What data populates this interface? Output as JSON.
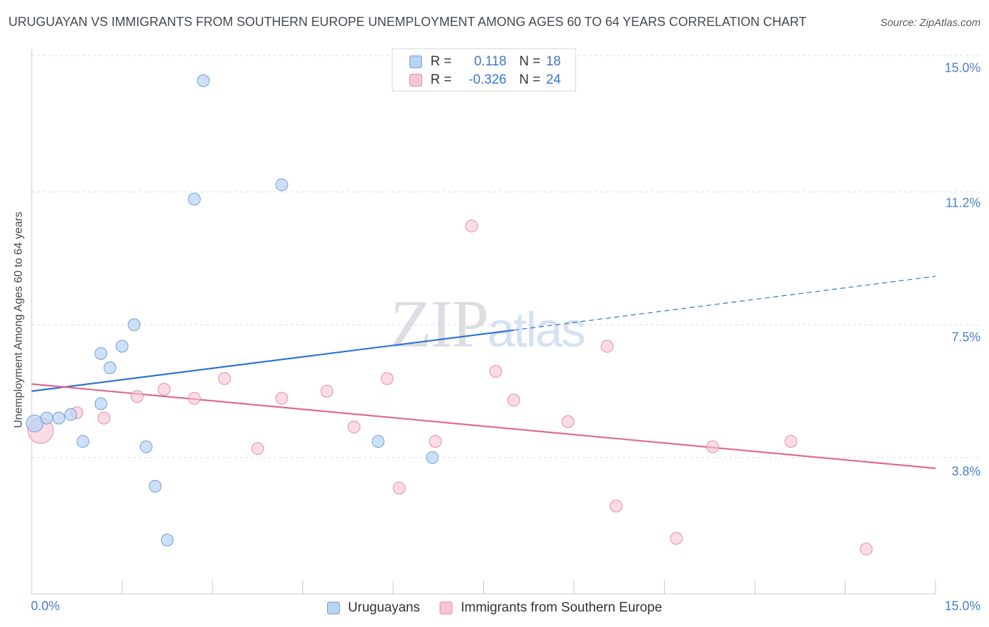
{
  "header": {
    "title": "URUGUAYAN VS IMMIGRANTS FROM SOUTHERN EUROPE UNEMPLOYMENT AMONG AGES 60 TO 64 YEARS CORRELATION CHART",
    "source": "Source: ZipAtlas.com"
  },
  "watermark": {
    "zip": "ZIP",
    "atlas": "atlas"
  },
  "legend_top": {
    "series1": {
      "r_label": "R =",
      "r_value": "0.118",
      "n_label": "N =",
      "n_value": "18"
    },
    "series2": {
      "r_label": "R =",
      "r_value": "-0.326",
      "n_label": "N =",
      "n_value": "24"
    }
  },
  "legend_bottom": {
    "series1": "Uruguayans",
    "series2": "Immigrants from Southern Europe"
  },
  "colors": {
    "blue_fill": "#b8d3f3",
    "blue_stroke": "#6f9fd8",
    "blue_line": "#2f74cf",
    "pink_fill": "#f8c5d5",
    "pink_stroke": "#e68aa9",
    "pink_line": "#e06893"
  },
  "chart_data": {
    "type": "scatter",
    "title": "URUGUAYAN VS IMMIGRANTS FROM SOUTHERN EUROPE UNEMPLOYMENT AMONG AGES 60 TO 64 YEARS CORRELATION CHART",
    "xlabel": "",
    "ylabel": "Unemployment Among Ages 60 to 64 years",
    "xlim": [
      0,
      15
    ],
    "ylim": [
      0,
      15
    ],
    "x_tick_labels": [
      "0.0%",
      "15.0%"
    ],
    "y_ticks": [
      {
        "value": 15.0,
        "label": "15.0%"
      },
      {
        "value": 11.2,
        "label": "11.2%"
      },
      {
        "value": 7.5,
        "label": "7.5%"
      },
      {
        "value": 3.8,
        "label": "3.8%"
      }
    ],
    "grid": true,
    "series": [
      {
        "name": "Uruguayans",
        "r": 0.118,
        "n": 18,
        "points": [
          {
            "x": 0.05,
            "y": 4.75,
            "size": "large"
          },
          {
            "x": 0.25,
            "y": 4.9
          },
          {
            "x": 0.45,
            "y": 4.9
          },
          {
            "x": 0.65,
            "y": 5.0
          },
          {
            "x": 0.85,
            "y": 4.25
          },
          {
            "x": 1.15,
            "y": 6.7
          },
          {
            "x": 1.15,
            "y": 5.3
          },
          {
            "x": 1.3,
            "y": 6.3
          },
          {
            "x": 1.5,
            "y": 6.9
          },
          {
            "x": 1.7,
            "y": 7.5
          },
          {
            "x": 1.9,
            "y": 4.1
          },
          {
            "x": 2.05,
            "y": 3.0
          },
          {
            "x": 2.25,
            "y": 1.5
          },
          {
            "x": 2.7,
            "y": 11.0
          },
          {
            "x": 2.85,
            "y": 14.3
          },
          {
            "x": 4.15,
            "y": 11.4
          },
          {
            "x": 5.75,
            "y": 4.25
          },
          {
            "x": 6.65,
            "y": 3.8
          }
        ],
        "trend": {
          "x0": 0,
          "y0": 5.65,
          "x1": 8.0,
          "y1": 7.35,
          "dashed_to_x": 15.0,
          "dashed_to_y": 8.85
        }
      },
      {
        "name": "Immigrants from Southern Europe",
        "r": -0.326,
        "n": 24,
        "points": [
          {
            "x": 0.15,
            "y": 4.55,
            "size": "large"
          },
          {
            "x": 0.75,
            "y": 5.05
          },
          {
            "x": 1.2,
            "y": 4.9
          },
          {
            "x": 1.75,
            "y": 5.5
          },
          {
            "x": 2.2,
            "y": 5.7
          },
          {
            "x": 2.7,
            "y": 5.45
          },
          {
            "x": 3.2,
            "y": 6.0
          },
          {
            "x": 3.75,
            "y": 4.05
          },
          {
            "x": 4.15,
            "y": 5.45
          },
          {
            "x": 4.9,
            "y": 5.65
          },
          {
            "x": 5.35,
            "y": 4.65
          },
          {
            "x": 5.9,
            "y": 6.0
          },
          {
            "x": 6.1,
            "y": 2.95
          },
          {
            "x": 6.7,
            "y": 4.25
          },
          {
            "x": 7.3,
            "y": 10.25
          },
          {
            "x": 7.7,
            "y": 6.2
          },
          {
            "x": 8.0,
            "y": 5.4
          },
          {
            "x": 8.9,
            "y": 4.8
          },
          {
            "x": 9.55,
            "y": 6.9
          },
          {
            "x": 9.7,
            "y": 2.45
          },
          {
            "x": 10.7,
            "y": 1.55
          },
          {
            "x": 11.3,
            "y": 4.1
          },
          {
            "x": 12.6,
            "y": 4.25
          },
          {
            "x": 13.85,
            "y": 1.25
          }
        ],
        "trend": {
          "x0": 0,
          "y0": 5.85,
          "x1": 15.0,
          "y1": 3.5
        }
      }
    ]
  }
}
